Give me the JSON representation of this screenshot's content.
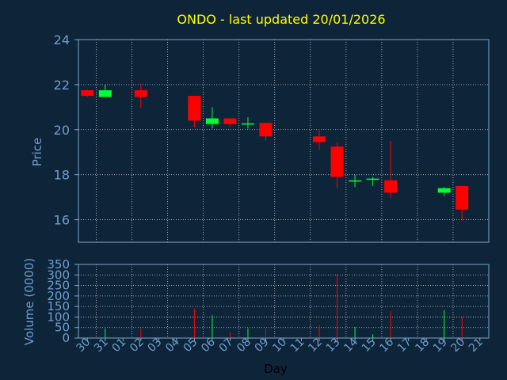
{
  "title": "ONDO - last updated 20/01/2026",
  "colors": {
    "background": "#0e2439",
    "title": "#ffff00",
    "axis_text": "#6f9fcf",
    "frame": "#7ea6cc",
    "grid": "#ffffff",
    "up": "#00ff33",
    "down": "#ff0000"
  },
  "chart_data": [
    {
      "type": "candlestick",
      "ylabel": "Price",
      "ylim": [
        15,
        24
      ],
      "yticks": [
        16,
        18,
        20,
        22,
        24
      ],
      "grid": true,
      "categories": [
        "30",
        "31",
        "01",
        "02",
        "03",
        "04",
        "05",
        "06",
        "07",
        "08",
        "09",
        "10",
        "11",
        "12",
        "13",
        "14",
        "15",
        "16",
        "17",
        "18",
        "19",
        "20",
        "21"
      ],
      "series": [
        {
          "date": "30",
          "open": 21.75,
          "high": 21.8,
          "low": 21.45,
          "close": 21.5
        },
        {
          "date": "31",
          "open": 21.45,
          "high": 22.0,
          "low": 21.45,
          "close": 21.75
        },
        {
          "date": "02",
          "open": 21.75,
          "high": 22.05,
          "low": 20.95,
          "close": 21.45
        },
        {
          "date": "05",
          "open": 21.5,
          "high": 21.5,
          "low": 20.1,
          "close": 20.4
        },
        {
          "date": "06",
          "open": 20.25,
          "high": 21.0,
          "low": 20.05,
          "close": 20.5
        },
        {
          "date": "07",
          "open": 20.5,
          "high": 20.5,
          "low": 20.15,
          "close": 20.25
        },
        {
          "date": "08",
          "open": 20.25,
          "high": 20.55,
          "low": 20.05,
          "close": 20.25
        },
        {
          "date": "09",
          "open": 20.3,
          "high": 20.3,
          "low": 19.5,
          "close": 19.7
        },
        {
          "date": "12",
          "open": 19.7,
          "high": 20.0,
          "low": 19.1,
          "close": 19.45
        },
        {
          "date": "13",
          "open": 19.25,
          "high": 19.45,
          "low": 17.4,
          "close": 17.9
        },
        {
          "date": "14",
          "open": 17.72,
          "high": 18.0,
          "low": 17.45,
          "close": 17.72
        },
        {
          "date": "15",
          "open": 17.75,
          "high": 17.9,
          "low": 17.5,
          "close": 17.8
        },
        {
          "date": "16",
          "open": 17.75,
          "high": 19.5,
          "low": 16.95,
          "close": 17.2
        },
        {
          "date": "19",
          "open": 17.2,
          "high": 17.45,
          "low": 17.05,
          "close": 17.4
        },
        {
          "date": "20",
          "open": 17.5,
          "high": 17.5,
          "low": 15.95,
          "close": 16.45
        }
      ]
    },
    {
      "type": "bar",
      "xlabel": "Day",
      "ylabel": "Volume (0000)",
      "ylim": [
        0,
        350
      ],
      "yticks": [
        0,
        50,
        100,
        150,
        200,
        250,
        300,
        350
      ],
      "grid": true,
      "categories": [
        "30",
        "31",
        "01",
        "02",
        "03",
        "04",
        "05",
        "06",
        "07",
        "08",
        "09",
        "10",
        "11",
        "12",
        "13",
        "14",
        "15",
        "16",
        "17",
        "18",
        "19",
        "20",
        "21"
      ],
      "values": [
        {
          "date": "30",
          "volume": 0,
          "direction": "down"
        },
        {
          "date": "31",
          "volume": 45,
          "direction": "up"
        },
        {
          "date": "02",
          "volume": 45,
          "direction": "down"
        },
        {
          "date": "05",
          "volume": 140,
          "direction": "down"
        },
        {
          "date": "06",
          "volume": 108,
          "direction": "up"
        },
        {
          "date": "07",
          "volume": 28,
          "direction": "down"
        },
        {
          "date": "08",
          "volume": 45,
          "direction": "up"
        },
        {
          "date": "09",
          "volume": 45,
          "direction": "down"
        },
        {
          "date": "12",
          "volume": 62,
          "direction": "down"
        },
        {
          "date": "13",
          "volume": 305,
          "direction": "down"
        },
        {
          "date": "14",
          "volume": 52,
          "direction": "up"
        },
        {
          "date": "15",
          "volume": 18,
          "direction": "up"
        },
        {
          "date": "16",
          "volume": 128,
          "direction": "down"
        },
        {
          "date": "19",
          "volume": 132,
          "direction": "up"
        },
        {
          "date": "20",
          "volume": 100,
          "direction": "down"
        }
      ]
    }
  ]
}
